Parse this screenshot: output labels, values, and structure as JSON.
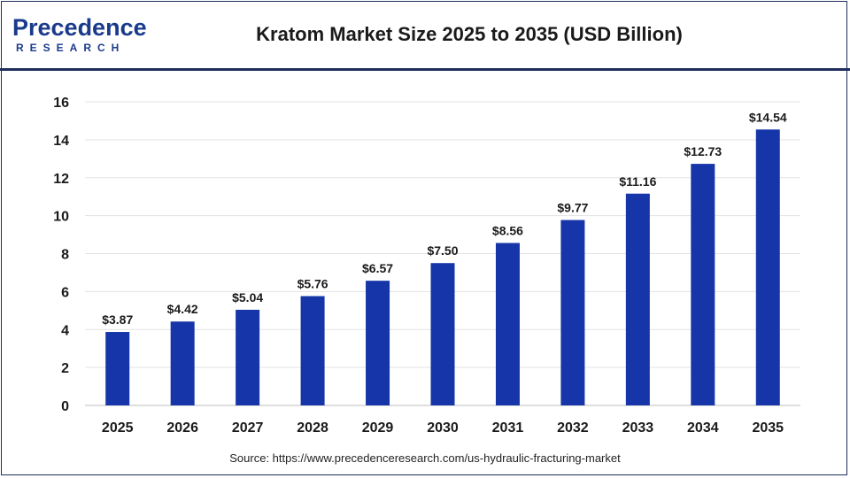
{
  "header": {
    "logo_text": "Precedence",
    "logo_subtext": "RESEARCH",
    "title": "Kratom Market Size 2025 to 2035 (USD Billion)"
  },
  "footer": {
    "source": "Source: https://www.precedenceresearch.com/us-hydraulic-fracturing-market"
  },
  "chart_data": {
    "type": "bar",
    "title": "Kratom Market Size 2025 to 2035 (USD Billion)",
    "categories": [
      "2025",
      "2026",
      "2027",
      "2028",
      "2029",
      "2030",
      "2031",
      "2032",
      "2033",
      "2034",
      "2035"
    ],
    "values": [
      3.87,
      4.42,
      5.04,
      5.76,
      6.57,
      7.5,
      8.56,
      9.77,
      11.16,
      12.73,
      14.54
    ],
    "data_labels": [
      "$3.87",
      "$4.42",
      "$5.04",
      "$5.76",
      "$6.57",
      "$7.50",
      "$8.56",
      "$9.77",
      "$11.16",
      "$12.73",
      "$14.54"
    ],
    "y_ticks": [
      0,
      2,
      4,
      6,
      8,
      10,
      12,
      14,
      16
    ],
    "ylim": [
      0,
      16
    ],
    "xlabel": "",
    "ylabel": "",
    "grid": true,
    "bar_color": "#1535a8"
  }
}
